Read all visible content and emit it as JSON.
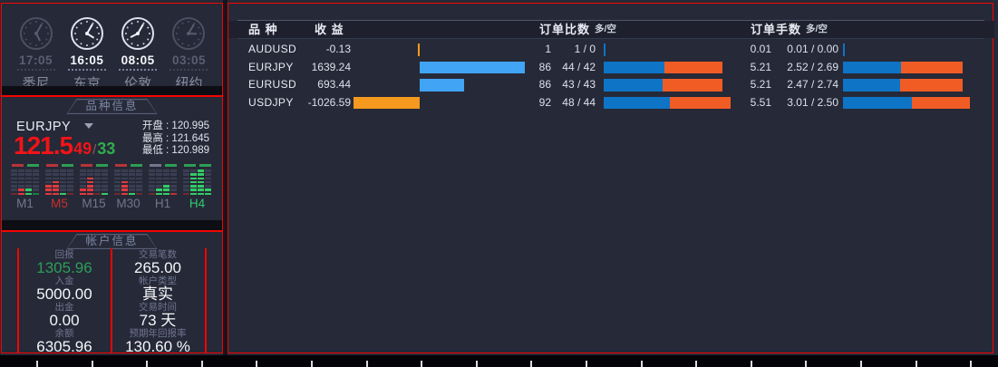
{
  "clocks": [
    {
      "time": "17:05",
      "city": "悉尼",
      "active": false
    },
    {
      "time": "16:05",
      "city": "东京",
      "active": true
    },
    {
      "time": "08:05",
      "city": "伦敦",
      "active": true
    },
    {
      "time": "03:05",
      "city": "纽约",
      "active": false
    }
  ],
  "symbol_panel": {
    "tab_label": "品种信息",
    "symbol": "EURJPY",
    "price_main": "121.5",
    "price_bid_frac": "49",
    "price_sep": "/",
    "price_ask_frac": "33",
    "ohl": [
      {
        "label": "开盘",
        "value": "120.995"
      },
      {
        "label": "最高",
        "value": "121.645"
      },
      {
        "label": "最低",
        "value": "120.989"
      }
    ],
    "timeframes": [
      {
        "label": "M1",
        "label_color": "#70778c",
        "top": [
          "#b73438",
          "#2d9e53"
        ],
        "cols": [
          {
            "color": "#6e2a31",
            "lit": 1
          },
          {
            "color": "#e03a3e",
            "lit": 2
          },
          {
            "color": "#33cc66",
            "lit": 2
          },
          {
            "color": "#1e7a44",
            "lit": 1
          }
        ]
      },
      {
        "label": "M5",
        "label_color": "#c4302f",
        "top": [
          "#b73438",
          "#2d9e53"
        ],
        "cols": [
          {
            "color": "#e03a3e",
            "lit": 3
          },
          {
            "color": "#e03a3e",
            "lit": 4
          },
          {
            "color": "#33cc66",
            "lit": 1
          },
          {
            "color": "#6e2a31",
            "lit": 1
          }
        ]
      },
      {
        "label": "M15",
        "label_color": "#70778c",
        "top": [
          "#b73438",
          "#2d9e53"
        ],
        "cols": [
          {
            "color": "#e03a3e",
            "lit": 2
          },
          {
            "color": "#e03a3e",
            "lit": 5
          },
          {
            "color": "#6e2a31",
            "lit": 1
          },
          {
            "color": "#33cc66",
            "lit": 1
          }
        ]
      },
      {
        "label": "M30",
        "label_color": "#70778c",
        "top": [
          "#b73438",
          "#2d9e53"
        ],
        "cols": [
          {
            "color": "#6e2a31",
            "lit": 1
          },
          {
            "color": "#e03a3e",
            "lit": 4
          },
          {
            "color": "#33cc66",
            "lit": 1
          },
          {
            "color": "#6e2a31",
            "lit": 1
          }
        ]
      },
      {
        "label": "H1",
        "label_color": "#70778c",
        "top": [
          "#70778c",
          "#2d9e53"
        ],
        "cols": [
          {
            "color": "#6e2a31",
            "lit": 1
          },
          {
            "color": "#33cc66",
            "lit": 2
          },
          {
            "color": "#33cc66",
            "lit": 3
          },
          {
            "color": "#b73438",
            "lit": 1
          }
        ]
      },
      {
        "label": "H4",
        "label_color": "#2ecc71",
        "top": [
          "#2d9e53",
          "#2d9e53"
        ],
        "cols": [
          {
            "color": "#6e2a31",
            "lit": 1
          },
          {
            "color": "#33cc66",
            "lit": 6
          },
          {
            "color": "#33cc66",
            "lit": 7
          },
          {
            "color": "#33cc66",
            "lit": 2
          }
        ]
      }
    ]
  },
  "account_panel": {
    "tab_label": "帐户信息",
    "stats_left": [
      {
        "label": "回报",
        "value": "1305.96",
        "color": "#2c9e59"
      },
      {
        "label": "入金",
        "value": "5000.00"
      },
      {
        "label": "出金",
        "value": "0.00"
      },
      {
        "label": "余额",
        "value": "6305.96"
      }
    ],
    "stats_right": [
      {
        "label": "交易笔数",
        "value": "265.00"
      },
      {
        "label": "帐户类型",
        "value": "真实"
      },
      {
        "label": "交易时间",
        "value": "73 天"
      },
      {
        "label": "预期年回报率",
        "value": "130.60 %"
      }
    ]
  },
  "table": {
    "headers": {
      "symbol": "品 种",
      "profit": "收 益",
      "orders": "订单比数",
      "orders_sub": "多/空",
      "lots": "订单手数",
      "lots_sub": "多/空"
    },
    "rows": [
      {
        "symbol": "AUDUSD",
        "profit": -0.13,
        "profit_text": "-0.13",
        "orders": 1,
        "orders_text": "1",
        "orders_ratio": "1 / 0",
        "long_orders": 1,
        "short_orders": 0,
        "lots": 0.01,
        "lots_text": "0.01",
        "lots_ratio": "0.01 / 0.00",
        "long_lots": 0.01,
        "short_lots": 0.0
      },
      {
        "symbol": "EURJPY",
        "profit": 1639.24,
        "profit_text": "1639.24",
        "orders": 86,
        "orders_text": "86",
        "orders_ratio": "44 / 42",
        "long_orders": 44,
        "short_orders": 42,
        "lots": 5.21,
        "lots_text": "5.21",
        "lots_ratio": "2.52 / 2.69",
        "long_lots": 2.52,
        "short_lots": 2.69
      },
      {
        "symbol": "EURUSD",
        "profit": 693.44,
        "profit_text": "693.44",
        "orders": 86,
        "orders_text": "86",
        "orders_ratio": "43 / 43",
        "long_orders": 43,
        "short_orders": 43,
        "lots": 5.21,
        "lots_text": "5.21",
        "lots_ratio": "2.47 / 2.74",
        "long_lots": 2.47,
        "short_lots": 2.74
      },
      {
        "symbol": "USDJPY",
        "profit": -1026.59,
        "profit_text": "-1026.59",
        "orders": 92,
        "orders_text": "92",
        "orders_ratio": "48 / 44",
        "long_orders": 48,
        "short_orders": 44,
        "lots": 5.51,
        "lots_text": "5.51",
        "lots_ratio": "3.01 / 2.50",
        "long_lots": 3.01,
        "short_lots": 2.5
      }
    ]
  },
  "colors": {
    "accent_red": "#f50400",
    "profit_pos": "#41a4f4",
    "profit_neg": "#f5991f",
    "long_blue": "#0d74c6",
    "short_orange": "#f15c25",
    "price_red": "#f01418",
    "price_green": "#2fae4e",
    "return_green": "#2c9e59"
  }
}
